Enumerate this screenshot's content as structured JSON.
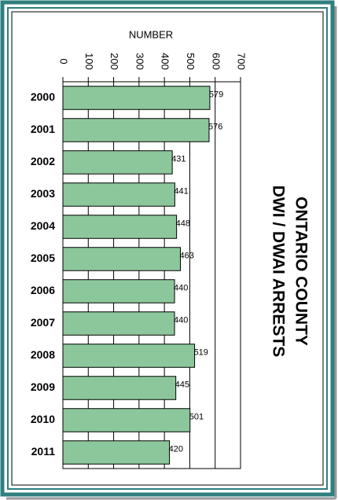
{
  "chart_data": {
    "type": "bar",
    "orientation": "horizontal",
    "title": "ONTARIO COUNTY",
    "subtitle": "DWI / DWAI ARRESTS",
    "x_label": "NUMBER",
    "categories": [
      "2000",
      "2001",
      "2002",
      "2003",
      "2004",
      "2005",
      "2006",
      "2007",
      "2008",
      "2009",
      "2010",
      "2011"
    ],
    "values": [
      579,
      576,
      431,
      441,
      448,
      463,
      440,
      440,
      519,
      445,
      501,
      420
    ],
    "color": "#8cc79b",
    "xlim": [
      0,
      700
    ],
    "xticks": [
      0,
      100,
      200,
      300,
      400,
      500,
      600,
      700
    ],
    "grid": true
  }
}
